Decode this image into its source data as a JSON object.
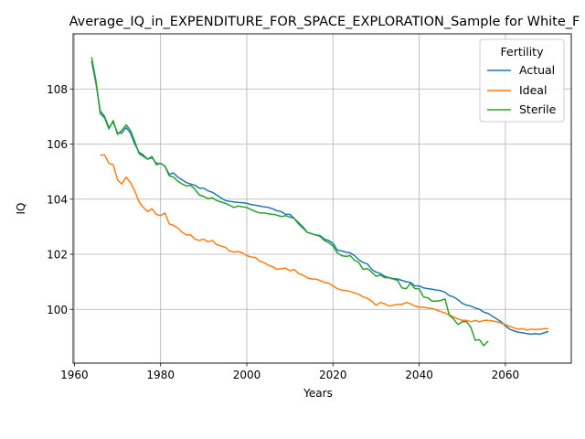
{
  "chart_data": {
    "type": "line",
    "title": "Average_IQ_in_EXPENDITURE_FOR_SPACE_EXPLORATION_Sample for White_F",
    "xlabel": "Years",
    "ylabel": "IQ",
    "xlim": [
      1959.7,
      2075.3
    ],
    "ylim": [
      98.05,
      110.0
    ],
    "xticks": [
      1960,
      1980,
      2000,
      2020,
      2040,
      2060
    ],
    "yticks": [
      100,
      102,
      104,
      106,
      108
    ],
    "grid": true,
    "legend": {
      "title": "Fertility",
      "position": "top-right"
    },
    "series": [
      {
        "name": "Actual",
        "color": "#1f77b4",
        "points": [
          [
            1964,
            109.0
          ],
          [
            1965,
            108.2
          ],
          [
            1966,
            107.2
          ],
          [
            1967,
            107.0
          ],
          [
            1968,
            106.6
          ],
          [
            1969,
            106.8
          ],
          [
            1970,
            106.4
          ],
          [
            1971,
            106.4
          ],
          [
            1972,
            106.6
          ],
          [
            1973,
            106.4
          ],
          [
            1974,
            106.0
          ],
          [
            1975,
            105.7
          ],
          [
            1976,
            105.6
          ],
          [
            1977,
            105.45
          ],
          [
            1978,
            105.5
          ],
          [
            1979,
            105.3
          ],
          [
            1980,
            105.3
          ],
          [
            1981,
            105.2
          ],
          [
            1982,
            104.9
          ],
          [
            1983,
            104.95
          ],
          [
            1984,
            104.8
          ],
          [
            1985,
            104.7
          ],
          [
            1986,
            104.6
          ],
          [
            1987,
            104.55
          ],
          [
            1988,
            104.5
          ],
          [
            1989,
            104.4
          ],
          [
            1990,
            104.4
          ],
          [
            1991,
            104.3
          ],
          [
            1992,
            104.25
          ],
          [
            1993,
            104.15
          ],
          [
            1994,
            104.05
          ],
          [
            1995,
            103.95
          ],
          [
            1996,
            103.92
          ],
          [
            1997,
            103.9
          ],
          [
            1998,
            103.88
          ],
          [
            1999,
            103.87
          ],
          [
            2000,
            103.85
          ],
          [
            2001,
            103.8
          ],
          [
            2002,
            103.78
          ],
          [
            2003,
            103.75
          ],
          [
            2004,
            103.72
          ],
          [
            2005,
            103.7
          ],
          [
            2006,
            103.65
          ],
          [
            2007,
            103.58
          ],
          [
            2008,
            103.55
          ],
          [
            2009,
            103.45
          ],
          [
            2010,
            103.45
          ],
          [
            2011,
            103.3
          ],
          [
            2012,
            103.15
          ],
          [
            2013,
            103.0
          ],
          [
            2014,
            102.8
          ],
          [
            2015,
            102.75
          ],
          [
            2016,
            102.7
          ],
          [
            2017,
            102.68
          ],
          [
            2018,
            102.55
          ],
          [
            2019,
            102.5
          ],
          [
            2020,
            102.4
          ],
          [
            2021,
            102.15
          ],
          [
            2022,
            102.12
          ],
          [
            2023,
            102.08
          ],
          [
            2024,
            102.05
          ],
          [
            2025,
            101.95
          ],
          [
            2026,
            101.8
          ],
          [
            2027,
            101.7
          ],
          [
            2028,
            101.65
          ],
          [
            2029,
            101.45
          ],
          [
            2030,
            101.35
          ],
          [
            2031,
            101.3
          ],
          [
            2032,
            101.2
          ],
          [
            2033,
            101.15
          ],
          [
            2034,
            101.12
          ],
          [
            2035,
            101.1
          ],
          [
            2036,
            101.05
          ],
          [
            2037,
            101.0
          ],
          [
            2038,
            100.98
          ],
          [
            2039,
            100.85
          ],
          [
            2040,
            100.85
          ],
          [
            2041,
            100.78
          ],
          [
            2042,
            100.75
          ],
          [
            2043,
            100.73
          ],
          [
            2044,
            100.7
          ],
          [
            2045,
            100.68
          ],
          [
            2046,
            100.62
          ],
          [
            2047,
            100.5
          ],
          [
            2048,
            100.45
          ],
          [
            2049,
            100.35
          ],
          [
            2050,
            100.22
          ],
          [
            2051,
            100.15
          ],
          [
            2052,
            100.12
          ],
          [
            2053,
            100.05
          ],
          [
            2054,
            100.0
          ],
          [
            2055,
            99.9
          ],
          [
            2056,
            99.85
          ],
          [
            2057,
            99.75
          ],
          [
            2058,
            99.65
          ],
          [
            2059,
            99.55
          ],
          [
            2060,
            99.4
          ],
          [
            2061,
            99.28
          ],
          [
            2062,
            99.22
          ],
          [
            2063,
            99.17
          ],
          [
            2064,
            99.15
          ],
          [
            2065,
            99.12
          ],
          [
            2066,
            99.1
          ],
          [
            2067,
            99.12
          ],
          [
            2068,
            99.1
          ],
          [
            2069,
            99.15
          ],
          [
            2070,
            99.2
          ]
        ]
      },
      {
        "name": "Ideal",
        "color": "#ff7f0e",
        "points": [
          [
            1966,
            105.6
          ],
          [
            1967,
            105.6
          ],
          [
            1968,
            105.3
          ],
          [
            1969,
            105.25
          ],
          [
            1970,
            104.7
          ],
          [
            1971,
            104.55
          ],
          [
            1972,
            104.8
          ],
          [
            1973,
            104.6
          ],
          [
            1974,
            104.3
          ],
          [
            1975,
            103.9
          ],
          [
            1976,
            103.7
          ],
          [
            1977,
            103.55
          ],
          [
            1978,
            103.65
          ],
          [
            1979,
            103.45
          ],
          [
            1980,
            103.4
          ],
          [
            1981,
            103.5
          ],
          [
            1982,
            103.1
          ],
          [
            1983,
            103.05
          ],
          [
            1984,
            102.95
          ],
          [
            1985,
            102.8
          ],
          [
            1986,
            102.7
          ],
          [
            1987,
            102.7
          ],
          [
            1988,
            102.55
          ],
          [
            1989,
            102.5
          ],
          [
            1990,
            102.55
          ],
          [
            1991,
            102.45
          ],
          [
            1992,
            102.5
          ],
          [
            1993,
            102.35
          ],
          [
            1994,
            102.3
          ],
          [
            1995,
            102.25
          ],
          [
            1996,
            102.12
          ],
          [
            1997,
            102.08
          ],
          [
            1998,
            102.1
          ],
          [
            1999,
            102.05
          ],
          [
            2000,
            101.95
          ],
          [
            2001,
            101.9
          ],
          [
            2002,
            101.88
          ],
          [
            2003,
            101.75
          ],
          [
            2004,
            101.7
          ],
          [
            2005,
            101.6
          ],
          [
            2006,
            101.55
          ],
          [
            2007,
            101.45
          ],
          [
            2008,
            101.48
          ],
          [
            2009,
            101.5
          ],
          [
            2010,
            101.4
          ],
          [
            2011,
            101.45
          ],
          [
            2012,
            101.3
          ],
          [
            2013,
            101.25
          ],
          [
            2014,
            101.15
          ],
          [
            2015,
            101.1
          ],
          [
            2016,
            101.1
          ],
          [
            2017,
            101.05
          ],
          [
            2018,
            100.98
          ],
          [
            2019,
            100.95
          ],
          [
            2020,
            100.85
          ],
          [
            2021,
            100.75
          ],
          [
            2022,
            100.7
          ],
          [
            2023,
            100.68
          ],
          [
            2024,
            100.65
          ],
          [
            2025,
            100.6
          ],
          [
            2026,
            100.55
          ],
          [
            2027,
            100.45
          ],
          [
            2028,
            100.4
          ],
          [
            2029,
            100.3
          ],
          [
            2030,
            100.15
          ],
          [
            2031,
            100.25
          ],
          [
            2032,
            100.2
          ],
          [
            2033,
            100.12
          ],
          [
            2034,
            100.15
          ],
          [
            2035,
            100.18
          ],
          [
            2036,
            100.18
          ],
          [
            2037,
            100.25
          ],
          [
            2038,
            100.2
          ],
          [
            2039,
            100.12
          ],
          [
            2040,
            100.08
          ],
          [
            2041,
            100.08
          ],
          [
            2042,
            100.05
          ],
          [
            2043,
            100.03
          ],
          [
            2044,
            99.98
          ],
          [
            2045,
            99.92
          ],
          [
            2046,
            99.87
          ],
          [
            2047,
            99.8
          ],
          [
            2048,
            99.72
          ],
          [
            2049,
            99.65
          ],
          [
            2050,
            99.6
          ],
          [
            2051,
            99.6
          ],
          [
            2052,
            99.55
          ],
          [
            2053,
            99.6
          ],
          [
            2054,
            99.55
          ],
          [
            2055,
            99.6
          ],
          [
            2056,
            99.6
          ],
          [
            2057,
            99.58
          ],
          [
            2058,
            99.55
          ],
          [
            2059,
            99.5
          ],
          [
            2060,
            99.45
          ],
          [
            2061,
            99.38
          ],
          [
            2062,
            99.33
          ],
          [
            2063,
            99.28
          ],
          [
            2064,
            99.3
          ],
          [
            2065,
            99.25
          ],
          [
            2066,
            99.28
          ],
          [
            2067,
            99.27
          ],
          [
            2068,
            99.28
          ],
          [
            2069,
            99.3
          ],
          [
            2070,
            99.3
          ]
        ]
      },
      {
        "name": "Sterile",
        "color": "#2ca02c",
        "points": [
          [
            1964,
            109.15
          ],
          [
            1965,
            108.3
          ],
          [
            1966,
            107.1
          ],
          [
            1967,
            106.95
          ],
          [
            1968,
            106.55
          ],
          [
            1969,
            106.85
          ],
          [
            1970,
            106.35
          ],
          [
            1971,
            106.5
          ],
          [
            1972,
            106.7
          ],
          [
            1973,
            106.5
          ],
          [
            1974,
            106.1
          ],
          [
            1975,
            105.65
          ],
          [
            1976,
            105.55
          ],
          [
            1977,
            105.45
          ],
          [
            1978,
            105.55
          ],
          [
            1979,
            105.25
          ],
          [
            1980,
            105.3
          ],
          [
            1981,
            105.2
          ],
          [
            1982,
            104.85
          ],
          [
            1983,
            104.8
          ],
          [
            1984,
            104.65
          ],
          [
            1985,
            104.55
          ],
          [
            1986,
            104.48
          ],
          [
            1987,
            104.5
          ],
          [
            1988,
            104.35
          ],
          [
            1989,
            104.15
          ],
          [
            1990,
            104.1
          ],
          [
            1991,
            104.02
          ],
          [
            1992,
            104.05
          ],
          [
            1993,
            103.95
          ],
          [
            1994,
            103.9
          ],
          [
            1995,
            103.85
          ],
          [
            1996,
            103.78
          ],
          [
            1997,
            103.7
          ],
          [
            1998,
            103.75
          ],
          [
            1999,
            103.72
          ],
          [
            2000,
            103.7
          ],
          [
            2001,
            103.62
          ],
          [
            2002,
            103.55
          ],
          [
            2003,
            103.5
          ],
          [
            2004,
            103.5
          ],
          [
            2005,
            103.47
          ],
          [
            2006,
            103.45
          ],
          [
            2007,
            103.42
          ],
          [
            2008,
            103.37
          ],
          [
            2009,
            103.4
          ],
          [
            2010,
            103.35
          ],
          [
            2011,
            103.3
          ],
          [
            2012,
            103.1
          ],
          [
            2013,
            102.95
          ],
          [
            2014,
            102.8
          ],
          [
            2015,
            102.75
          ],
          [
            2016,
            102.7
          ],
          [
            2017,
            102.65
          ],
          [
            2018,
            102.5
          ],
          [
            2019,
            102.42
          ],
          [
            2020,
            102.3
          ],
          [
            2021,
            102.05
          ],
          [
            2022,
            101.95
          ],
          [
            2023,
            101.92
          ],
          [
            2024,
            101.95
          ],
          [
            2025,
            101.78
          ],
          [
            2026,
            101.7
          ],
          [
            2027,
            101.45
          ],
          [
            2028,
            101.48
          ],
          [
            2029,
            101.35
          ],
          [
            2030,
            101.2
          ],
          [
            2031,
            101.25
          ],
          [
            2032,
            101.15
          ],
          [
            2033,
            101.15
          ],
          [
            2034,
            101.1
          ],
          [
            2035,
            101.05
          ],
          [
            2036,
            100.78
          ],
          [
            2037,
            100.75
          ],
          [
            2038,
            100.95
          ],
          [
            2039,
            100.75
          ],
          [
            2040,
            100.75
          ],
          [
            2041,
            100.45
          ],
          [
            2042,
            100.42
          ],
          [
            2043,
            100.3
          ],
          [
            2044,
            100.3
          ],
          [
            2045,
            100.32
          ],
          [
            2046,
            100.38
          ],
          [
            2047,
            99.78
          ],
          [
            2048,
            99.65
          ],
          [
            2049,
            99.45
          ],
          [
            2050,
            99.55
          ],
          [
            2051,
            99.55
          ],
          [
            2052,
            99.35
          ],
          [
            2053,
            98.88
          ],
          [
            2054,
            98.9
          ],
          [
            2055,
            98.68
          ],
          [
            2056,
            98.85
          ]
        ]
      }
    ]
  }
}
